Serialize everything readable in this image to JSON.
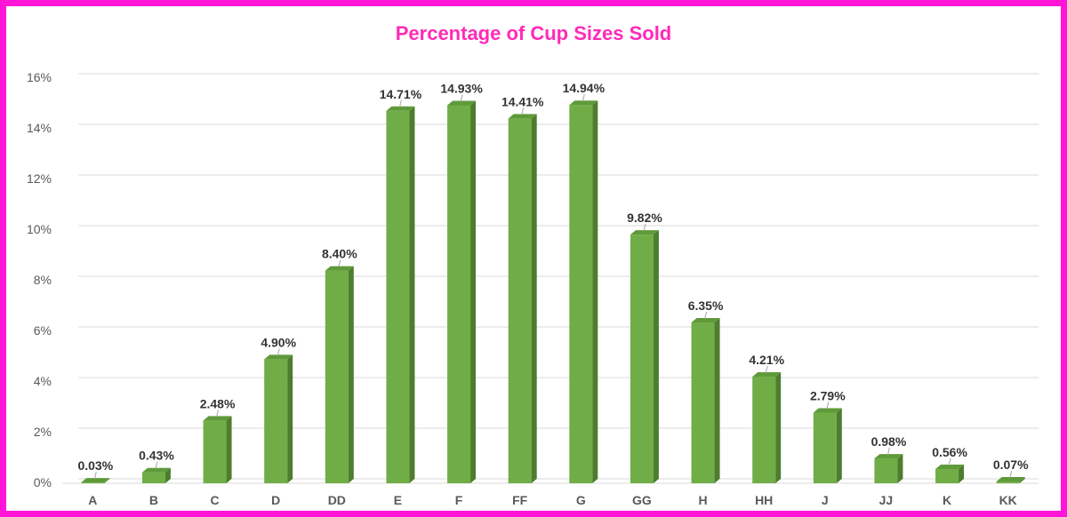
{
  "chart_data": {
    "type": "bar",
    "title": "Percentage of Cup Sizes Sold",
    "categories": [
      "A",
      "B",
      "C",
      "D",
      "DD",
      "E",
      "F",
      "FF",
      "G",
      "GG",
      "H",
      "HH",
      "J",
      "JJ",
      "K",
      "KK"
    ],
    "values": [
      0.03,
      0.43,
      2.48,
      4.9,
      8.4,
      14.71,
      14.93,
      14.41,
      14.94,
      9.82,
      6.35,
      4.21,
      2.79,
      0.98,
      0.56,
      0.07
    ],
    "data_labels": [
      "0.03%",
      "0.43%",
      "2.48%",
      "4.90%",
      "8.40%",
      "14.71%",
      "14.93%",
      "14.41%",
      "14.94%",
      "9.82%",
      "6.35%",
      "4.21%",
      "2.79%",
      "0.98%",
      "0.56%",
      "0.07%"
    ],
    "ylim": [
      0,
      16
    ],
    "yticks": [
      0,
      2,
      4,
      6,
      8,
      10,
      12,
      14,
      16
    ],
    "ytick_labels": [
      "0%",
      "2%",
      "4%",
      "6%",
      "8%",
      "10%",
      "12%",
      "14%",
      "16%"
    ],
    "xlabel": "",
    "ylabel": "",
    "grid": true,
    "legend": "none"
  },
  "colors": {
    "frame": "#ff14d8",
    "title": "#ff2ab8",
    "bar_front": "#70ad47",
    "bar_side": "#4e7d2f",
    "bar_top": "#5f9a3a",
    "grid": "#d9d9d9",
    "axis_text": "#595959",
    "label_text": "#333333"
  }
}
